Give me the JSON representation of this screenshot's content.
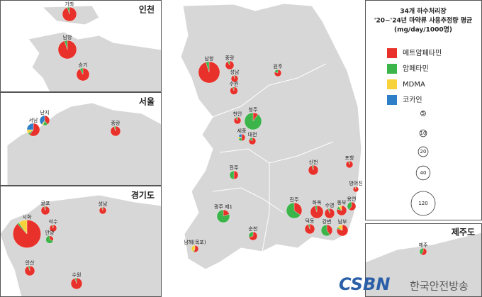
{
  "legend": {
    "title": [
      "34개 하수처리장",
      "'20~'24년 마약류 사용추정량 평균",
      "(mg/day/1000명)"
    ],
    "items": [
      {
        "name": "메트암페타민",
        "color": "#e8312a"
      },
      {
        "name": "암페타민",
        "color": "#3bb44a"
      },
      {
        "name": "MDMA",
        "color": "#f7d23b"
      },
      {
        "name": "코카인",
        "color": "#2e7fc8"
      }
    ],
    "sizes": [
      5,
      10,
      20,
      40,
      120
    ]
  },
  "panels": [
    "인천",
    "서울",
    "경기도",
    "제주도"
  ],
  "sites": [
    {
      "name": "가좌",
      "total": 41,
      "shares": [
        95,
        5,
        0,
        0
      ]
    },
    {
      "name": "남항",
      "total": 70,
      "shares": [
        95,
        5,
        0,
        0
      ]
    },
    {
      "name": "승기",
      "total": 34,
      "shares": [
        92,
        8,
        0,
        0
      ]
    },
    {
      "name": "난지",
      "total": 20,
      "shares": [
        40,
        15,
        5,
        40
      ]
    },
    {
      "name": "서남",
      "total": 34,
      "shares": [
        60,
        5,
        10,
        25
      ]
    },
    {
      "name": "중랑",
      "total": 20,
      "shares": [
        95,
        5,
        0,
        0
      ]
    },
    {
      "name": "시화",
      "total": 160,
      "shares": [
        88,
        2,
        10,
        0
      ]
    },
    {
      "name": "굴포",
      "total": 15,
      "shares": [
        95,
        5,
        0,
        0
      ]
    },
    {
      "name": "석수",
      "total": 10,
      "shares": [
        95,
        5,
        0,
        0
      ]
    },
    {
      "name": "안양",
      "total": 12,
      "shares": [
        30,
        70,
        0,
        0
      ]
    },
    {
      "name": "성남",
      "total": 10,
      "shares": [
        95,
        5,
        0,
        0
      ]
    },
    {
      "name": "안산",
      "total": 20,
      "shares": [
        95,
        5,
        0,
        0
      ]
    },
    {
      "name": "수원",
      "total": 26,
      "shares": [
        95,
        5,
        0,
        0
      ]
    },
    {
      "name": "남항",
      "total": 94,
      "shares": [
        95,
        5,
        0,
        0
      ]
    },
    {
      "name": "중랑",
      "total": 15,
      "shares": [
        92,
        8,
        0,
        0
      ]
    },
    {
      "name": "성남",
      "total": 10,
      "shares": [
        95,
        5,
        0,
        0
      ]
    },
    {
      "name": "수원",
      "total": 12,
      "shares": [
        95,
        5,
        0,
        0
      ]
    },
    {
      "name": "원주",
      "total": 10,
      "shares": [
        80,
        20,
        0,
        0
      ]
    },
    {
      "name": "청주",
      "total": 60,
      "shares": [
        10,
        90,
        0,
        0
      ]
    },
    {
      "name": "천안",
      "total": 10,
      "shares": [
        90,
        10,
        0,
        0
      ]
    },
    {
      "name": "세종",
      "total": 10,
      "shares": [
        50,
        20,
        10,
        20
      ]
    },
    {
      "name": "대전",
      "total": 10,
      "shares": [
        85,
        15,
        0,
        0
      ]
    },
    {
      "name": "전주",
      "total": 15,
      "shares": [
        50,
        50,
        0,
        0
      ]
    },
    {
      "name": "신천",
      "total": 20,
      "shares": [
        95,
        5,
        0,
        0
      ]
    },
    {
      "name": "포항",
      "total": 10,
      "shares": [
        95,
        5,
        0,
        0
      ]
    },
    {
      "name": "방어진",
      "total": 6,
      "shares": [
        95,
        5,
        0,
        0
      ]
    },
    {
      "name": "용연",
      "total": 15,
      "shares": [
        60,
        40,
        0,
        0
      ]
    },
    {
      "name": "동부",
      "total": 20,
      "shares": [
        80,
        10,
        10,
        0
      ]
    },
    {
      "name": "수영",
      "total": 20,
      "shares": [
        95,
        5,
        0,
        0
      ]
    },
    {
      "name": "화옥",
      "total": 34,
      "shares": [
        95,
        5,
        0,
        0
      ]
    },
    {
      "name": "진주",
      "total": 50,
      "shares": [
        35,
        65,
        0,
        0
      ]
    },
    {
      "name": "광주 제1",
      "total": 34,
      "shares": [
        20,
        80,
        0,
        0
      ]
    },
    {
      "name": "순천",
      "total": 15,
      "shares": [
        70,
        30,
        0,
        0
      ]
    },
    {
      "name": "남해(목포)",
      "total": 10,
      "shares": [
        55,
        5,
        40,
        0
      ]
    },
    {
      "name": "덕동",
      "total": 20,
      "shares": [
        95,
        5,
        0,
        0
      ]
    },
    {
      "name": "강변",
      "total": 26,
      "shares": [
        40,
        60,
        0,
        0
      ]
    },
    {
      "name": "남부",
      "total": 26,
      "shares": [
        80,
        5,
        15,
        0
      ]
    },
    {
      "name": "제주",
      "total": 10,
      "shares": [
        60,
        40,
        0,
        0
      ]
    }
  ],
  "logo": {
    "mark": "CSBN",
    "text": "한국안전방송"
  }
}
